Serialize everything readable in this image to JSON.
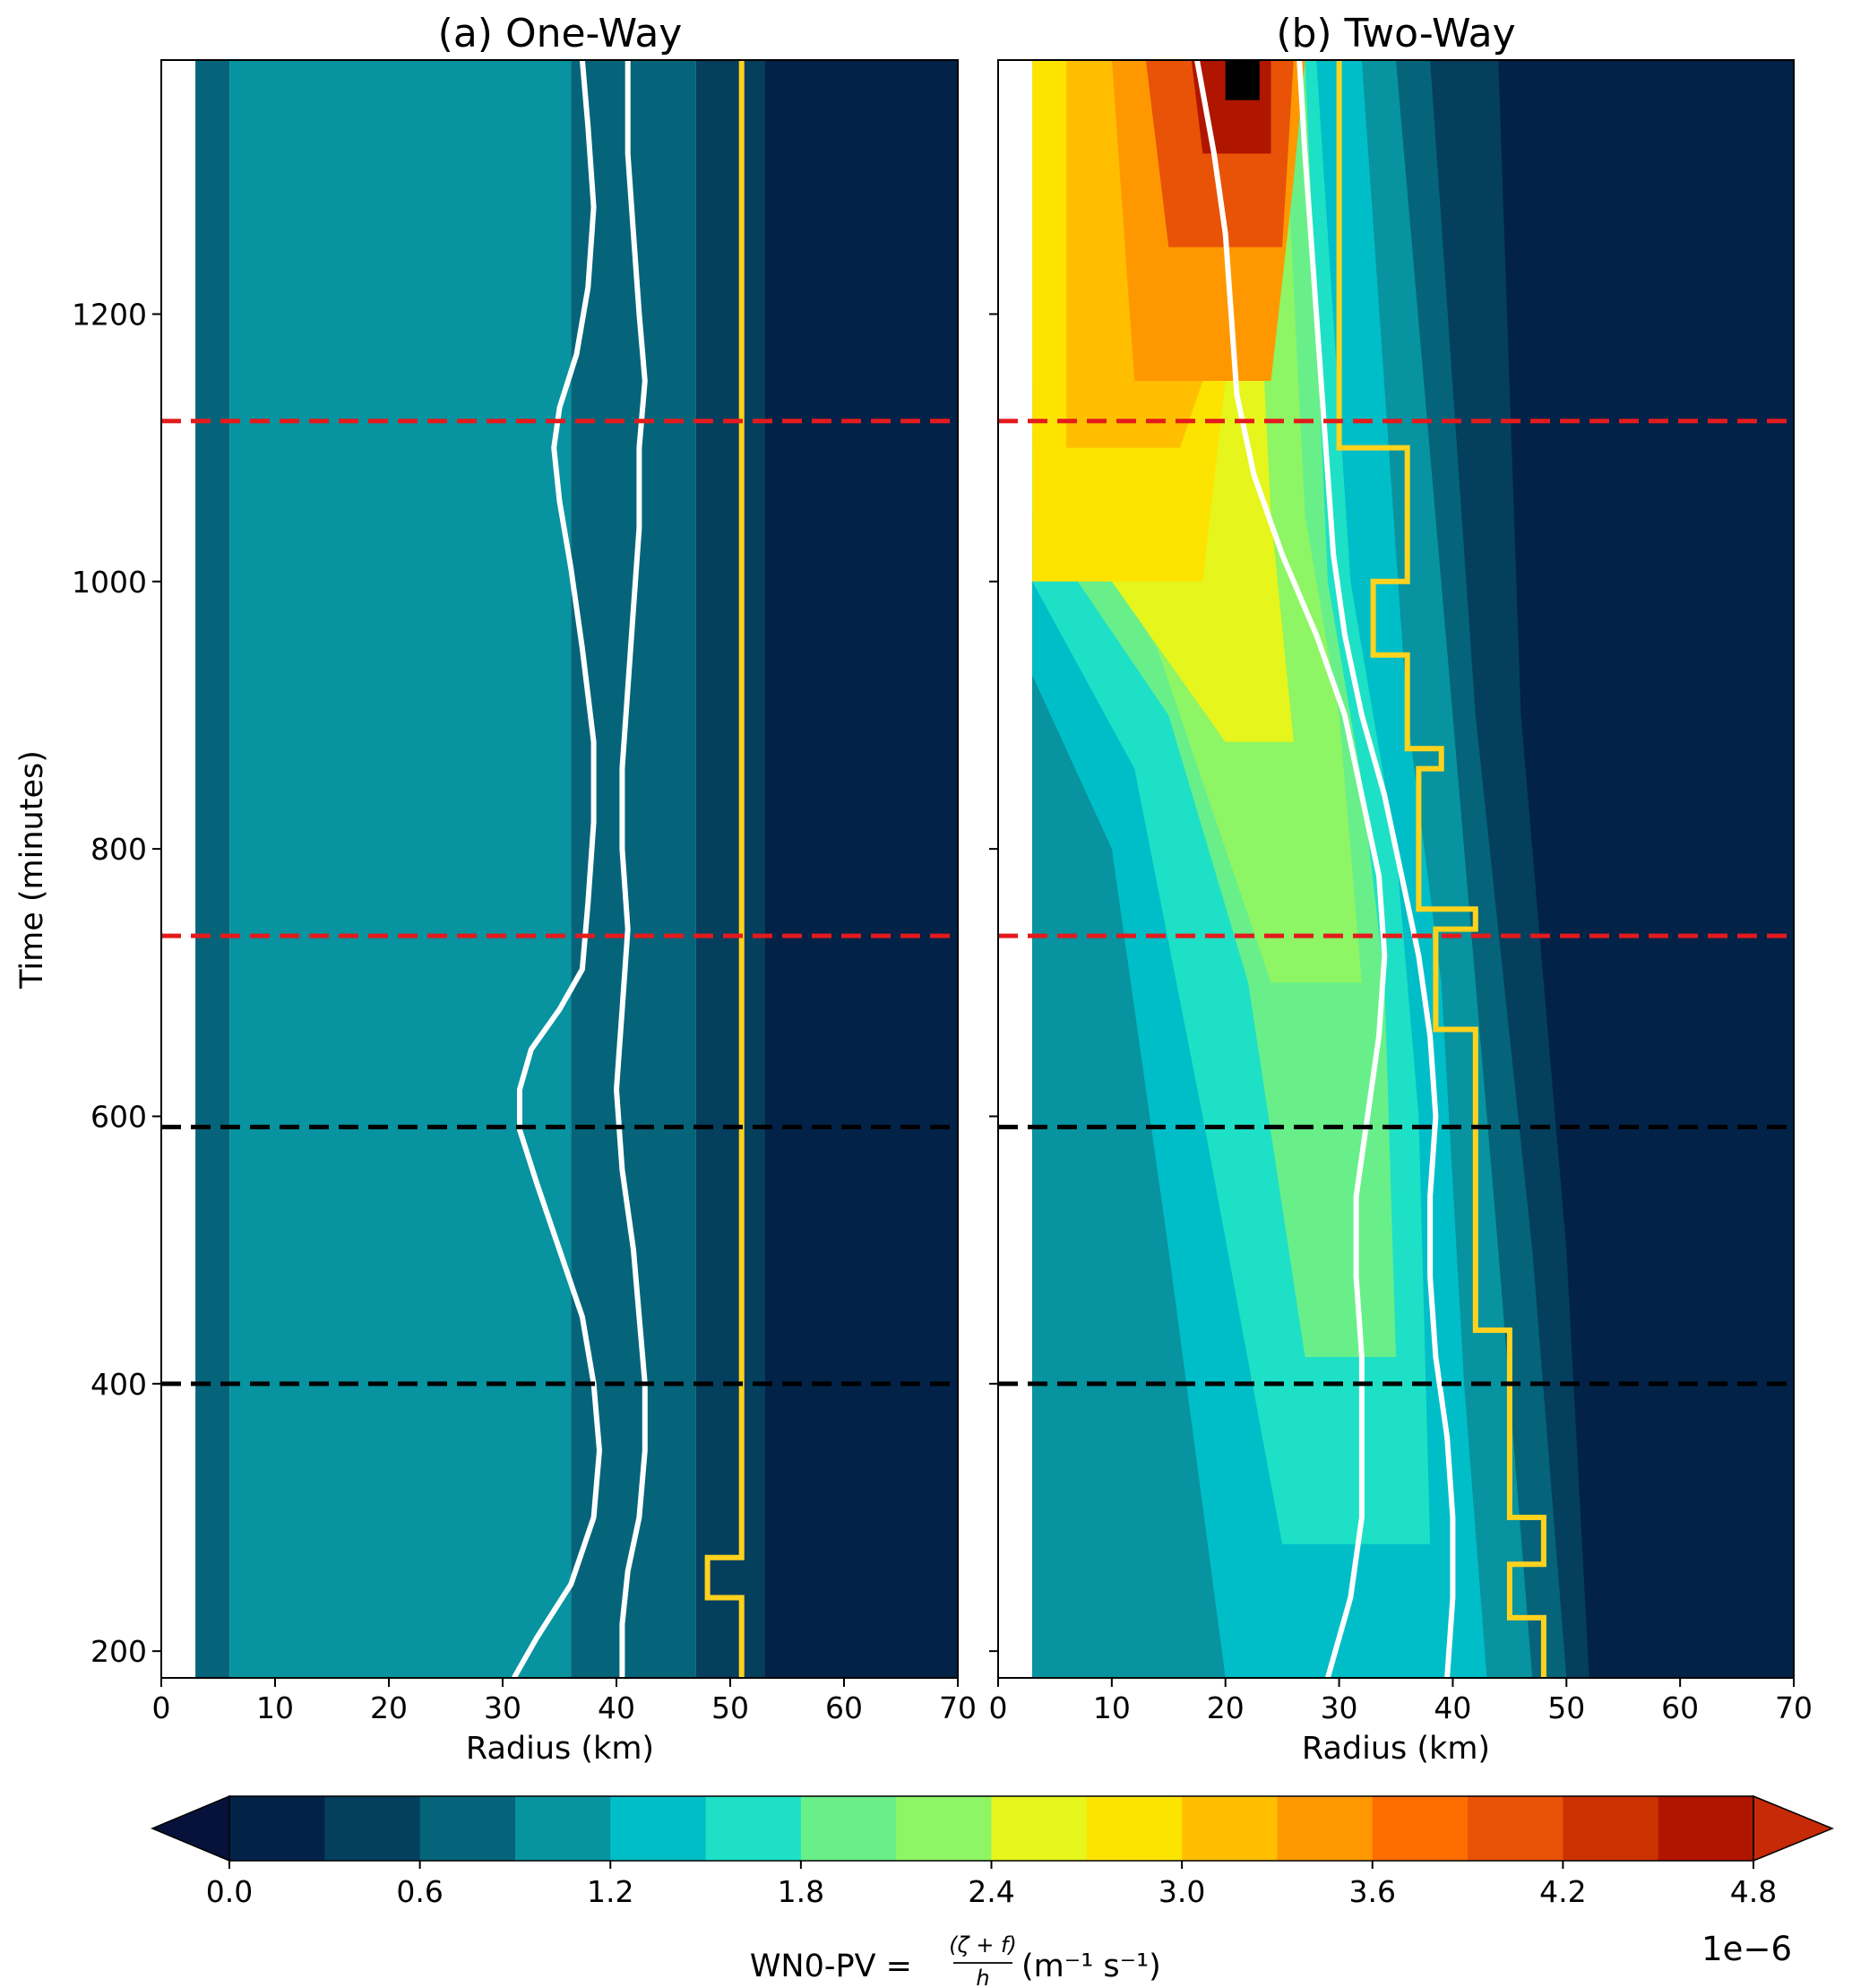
{
  "chart_data": [
    {
      "type": "heatmap",
      "title": "(a) One-Way",
      "xlabel": "Radius (km)",
      "ylabel": "Time (minutes)",
      "xlim": [
        0,
        70
      ],
      "ylim": [
        180,
        1390
      ],
      "xticks": [
        "0",
        "10",
        "20",
        "30",
        "40",
        "50",
        "60",
        "70"
      ],
      "yticks": [
        "200",
        "400",
        "600",
        "800",
        "1000",
        "1200"
      ],
      "field_bands_km": [
        {
          "r0": 3,
          "r1": 6,
          "level": 2
        },
        {
          "r0": 6,
          "r1": 36,
          "level": 3
        },
        {
          "r0": 36,
          "r1": 47,
          "level": 2
        },
        {
          "r0": 47,
          "r1": 53,
          "level": 1
        },
        {
          "r0": 53,
          "r1": 70,
          "level": 0
        }
      ],
      "white_contours": [
        {
          "name": "",
          "points": [
            [
              31,
              180
            ],
            [
              33,
              210
            ],
            [
              36,
              250
            ],
            [
              38,
              300
            ],
            [
              38.5,
              350
            ],
            [
              38,
              400
            ],
            [
              37,
              450
            ],
            [
              35,
              500
            ],
            [
              33,
              550
            ],
            [
              31.5,
              590
            ],
            [
              31.5,
              620
            ],
            [
              32.5,
              650
            ],
            [
              35,
              680
            ],
            [
              37,
              710
            ],
            [
              37.5,
              760
            ],
            [
              38,
              820
            ],
            [
              38,
              880
            ],
            [
              37,
              950
            ],
            [
              36,
              1010
            ],
            [
              35,
              1060
            ],
            [
              34.5,
              1100
            ],
            [
              35,
              1130
            ],
            [
              36.5,
              1170
            ],
            [
              37.5,
              1220
            ],
            [
              38,
              1280
            ],
            [
              37.5,
              1340
            ],
            [
              37,
              1390
            ]
          ]
        },
        {
          "name": "",
          "points": [
            [
              40.5,
              180
            ],
            [
              40.5,
              220
            ],
            [
              41,
              260
            ],
            [
              42,
              300
            ],
            [
              42.5,
              350
            ],
            [
              42.5,
              400
            ],
            [
              42,
              450
            ],
            [
              41.5,
              500
            ],
            [
              40.5,
              560
            ],
            [
              40,
              620
            ],
            [
              40.5,
              680
            ],
            [
              41,
              740
            ],
            [
              40.5,
              800
            ],
            [
              40.5,
              860
            ],
            [
              41,
              920
            ],
            [
              41.5,
              980
            ],
            [
              42,
              1040
            ],
            [
              42,
              1100
            ],
            [
              42.5,
              1150
            ],
            [
              42,
              1200
            ],
            [
              41.5,
              1260
            ],
            [
              41,
              1320
            ],
            [
              41,
              1390
            ]
          ]
        }
      ],
      "yellow_contour": [
        [
          51,
          180
        ],
        [
          51,
          240
        ],
        [
          48,
          240
        ],
        [
          48,
          270
        ],
        [
          51,
          270
        ],
        [
          51,
          1390
        ]
      ],
      "hlines": [
        {
          "y": 1120,
          "color": "#e41a1c"
        },
        {
          "y": 735,
          "color": "#e41a1c"
        },
        {
          "y": 592,
          "color": "#000000"
        },
        {
          "y": 400,
          "color": "#000000"
        }
      ]
    },
    {
      "type": "heatmap",
      "title": "(b) Two-Way",
      "xlabel": "Radius (km)",
      "ylabel": "",
      "xlim": [
        0,
        70
      ],
      "ylim": [
        180,
        1390
      ],
      "xticks": [
        "0",
        "10",
        "20",
        "30",
        "40",
        "50",
        "60",
        "70"
      ],
      "yticks": [],
      "white_contours": [
        {
          "name": "",
          "points": [
            [
              29,
              180
            ],
            [
              31,
              240
            ],
            [
              32,
              300
            ],
            [
              32,
              360
            ],
            [
              32,
              420
            ],
            [
              31.5,
              480
            ],
            [
              31.5,
              540
            ],
            [
              32.5,
              600
            ],
            [
              33.5,
              660
            ],
            [
              34,
              720
            ],
            [
              33.5,
              780
            ],
            [
              32,
              840
            ],
            [
              30.5,
              900
            ],
            [
              28,
              960
            ],
            [
              25,
              1020
            ],
            [
              22.5,
              1080
            ],
            [
              21,
              1140
            ],
            [
              20.5,
              1200
            ],
            [
              20,
              1260
            ],
            [
              19,
              1320
            ],
            [
              17.5,
              1390
            ]
          ]
        },
        {
          "name": "",
          "points": [
            [
              39.5,
              180
            ],
            [
              40,
              240
            ],
            [
              40,
              300
            ],
            [
              39.5,
              360
            ],
            [
              38.5,
              420
            ],
            [
              38,
              480
            ],
            [
              38,
              540
            ],
            [
              38.5,
              600
            ],
            [
              38,
              660
            ],
            [
              37,
              720
            ],
            [
              35.5,
              780
            ],
            [
              34,
              840
            ],
            [
              32,
              900
            ],
            [
              30.5,
              960
            ],
            [
              29.5,
              1020
            ],
            [
              29,
              1080
            ],
            [
              28.5,
              1140
            ],
            [
              28,
              1200
            ],
            [
              27.5,
              1260
            ],
            [
              27,
              1320
            ],
            [
              26.5,
              1390
            ]
          ]
        }
      ],
      "yellow_contour": [
        [
          48,
          180
        ],
        [
          48,
          225
        ],
        [
          45,
          225
        ],
        [
          45,
          265
        ],
        [
          48,
          265
        ],
        [
          48,
          300
        ],
        [
          45,
          300
        ],
        [
          45,
          440
        ],
        [
          42,
          440
        ],
        [
          42,
          665
        ],
        [
          38.5,
          665
        ],
        [
          38.5,
          740
        ],
        [
          42,
          740
        ],
        [
          42,
          755
        ],
        [
          37,
          755
        ],
        [
          37,
          860
        ],
        [
          39,
          860
        ],
        [
          39,
          875
        ],
        [
          36,
          875
        ],
        [
          36,
          945
        ],
        [
          33,
          945
        ],
        [
          33,
          1000
        ],
        [
          36,
          1000
        ],
        [
          36,
          1100
        ],
        [
          30,
          1100
        ],
        [
          30,
          1390
        ]
      ],
      "hlines": [
        {
          "y": 1120,
          "color": "#e41a1c"
        },
        {
          "y": 735,
          "color": "#e41a1c"
        },
        {
          "y": 592,
          "color": "#000000"
        },
        {
          "y": 400,
          "color": "#000000"
        }
      ]
    }
  ],
  "colorbar": {
    "colors": [
      "#06123a",
      "#022248",
      "#043f5e",
      "#05647a",
      "#07939f",
      "#00bec7",
      "#1ee0c6",
      "#68ef8a",
      "#8ef565",
      "#e6f51c",
      "#fde400",
      "#ffbf00",
      "#ff9800",
      "#ff6d00",
      "#e85308",
      "#cc3200",
      "#b01500",
      "#c62a06"
    ],
    "ticks": [
      "0.0",
      "0.6",
      "1.2",
      "1.8",
      "2.4",
      "3.0",
      "3.6",
      "4.2",
      "4.8"
    ],
    "label": "WN0-PV = (ζ+f)/h (m⁻¹ s⁻¹)",
    "label_main": "WN0-PV = ",
    "label_frac_num": "(ζ + f)",
    "label_frac_den": "h",
    "label_units": "(m⁻¹ s⁻¹)",
    "exponent": "1e−6"
  }
}
